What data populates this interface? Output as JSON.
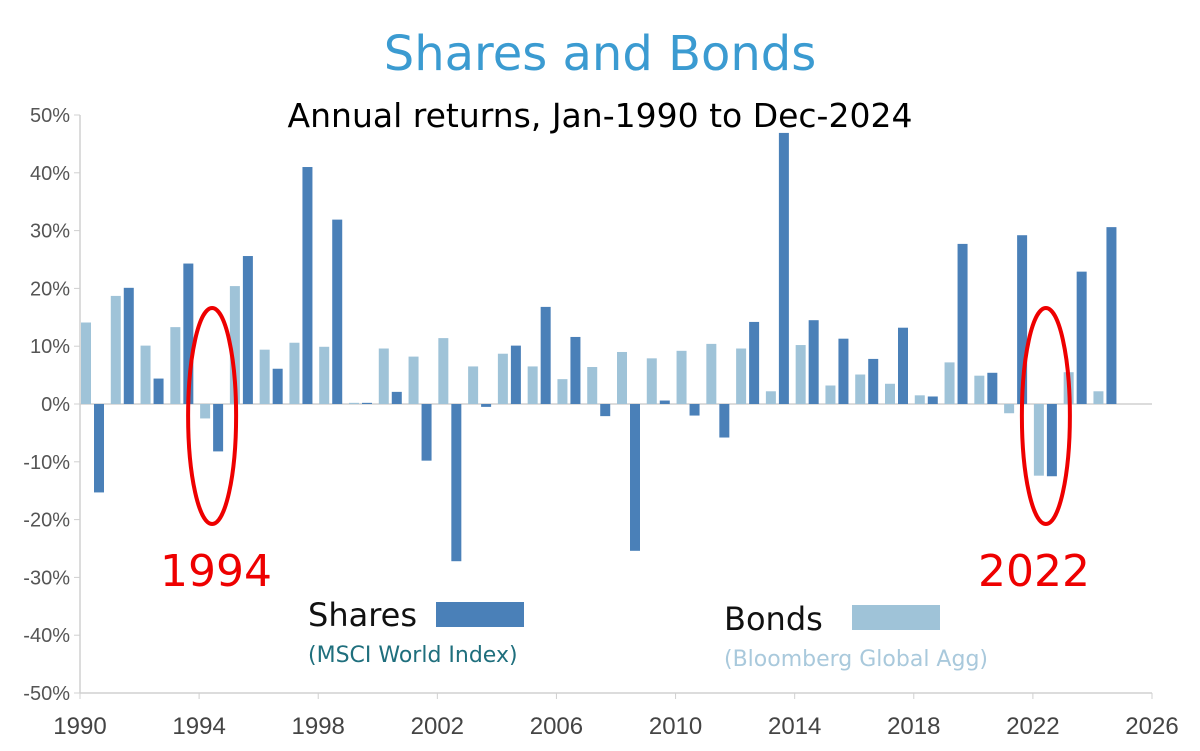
{
  "colors": {
    "shares": "#4a80b8",
    "bonds": "#9fc3d8",
    "title": "#3b9bd1",
    "annotation": "#ee0000",
    "axis": "#d0d0d0",
    "shares_caption": "#1f6f7d",
    "bonds_caption": "#a9c9dc"
  },
  "legend": {
    "shares_label": "Shares",
    "shares_caption": "(MSCI World Index)",
    "bonds_label": "Bonds",
    "bonds_caption": "(Bloomberg Global Agg)"
  },
  "annotations": [
    {
      "text": "1994",
      "year": 1994
    },
    {
      "text": "2022",
      "year": 2022
    }
  ],
  "chart_data": {
    "type": "bar",
    "title": "Shares and Bonds",
    "subtitle": "Annual returns, Jan-1990 to Dec-2024",
    "xlabel": "",
    "ylabel": "",
    "xlim": [
      1990,
      2026
    ],
    "ylim": [
      -50,
      50
    ],
    "x_ticks": [
      1990,
      1994,
      1998,
      2002,
      2006,
      2010,
      2014,
      2018,
      2022,
      2026
    ],
    "y_ticks": [
      -50,
      -40,
      -30,
      -20,
      -10,
      0,
      10,
      20,
      30,
      40,
      50
    ],
    "y_tick_format": "percent",
    "grid": false,
    "legend_position": "bottom-center",
    "years": [
      1990,
      1991,
      1992,
      1993,
      1994,
      1995,
      1996,
      1997,
      1998,
      1999,
      2000,
      2001,
      2002,
      2003,
      2004,
      2005,
      2006,
      2007,
      2008,
      2009,
      2010,
      2011,
      2012,
      2013,
      2014,
      2015,
      2016,
      2017,
      2018,
      2019,
      2020,
      2021,
      2022,
      2023,
      2024
    ],
    "series": [
      {
        "name": "Shares",
        "values": [
          -15.3,
          20.1,
          4.4,
          24.3,
          -8.2,
          25.6,
          6.1,
          41.0,
          31.9,
          0.2,
          2.1,
          -9.8,
          -27.2,
          -0.5,
          10.1,
          16.8,
          11.6,
          -2.1,
          -25.4,
          0.6,
          -2.0,
          -5.8,
          14.2,
          46.9,
          14.5,
          11.3,
          7.8,
          13.2,
          1.3,
          27.7,
          5.4,
          29.2,
          -12.5,
          22.9,
          30.6
        ]
      },
      {
        "name": "Bonds",
        "values": [
          14.1,
          18.7,
          10.1,
          13.3,
          -2.5,
          20.4,
          9.4,
          10.6,
          9.9,
          0.2,
          9.6,
          8.2,
          11.4,
          6.5,
          8.7,
          6.5,
          4.3,
          6.4,
          9.0,
          7.9,
          9.2,
          10.4,
          9.6,
          2.2,
          10.2,
          3.2,
          5.1,
          3.5,
          1.5,
          7.2,
          4.9,
          -1.6,
          -12.4,
          5.5,
          2.2
        ]
      }
    ]
  }
}
